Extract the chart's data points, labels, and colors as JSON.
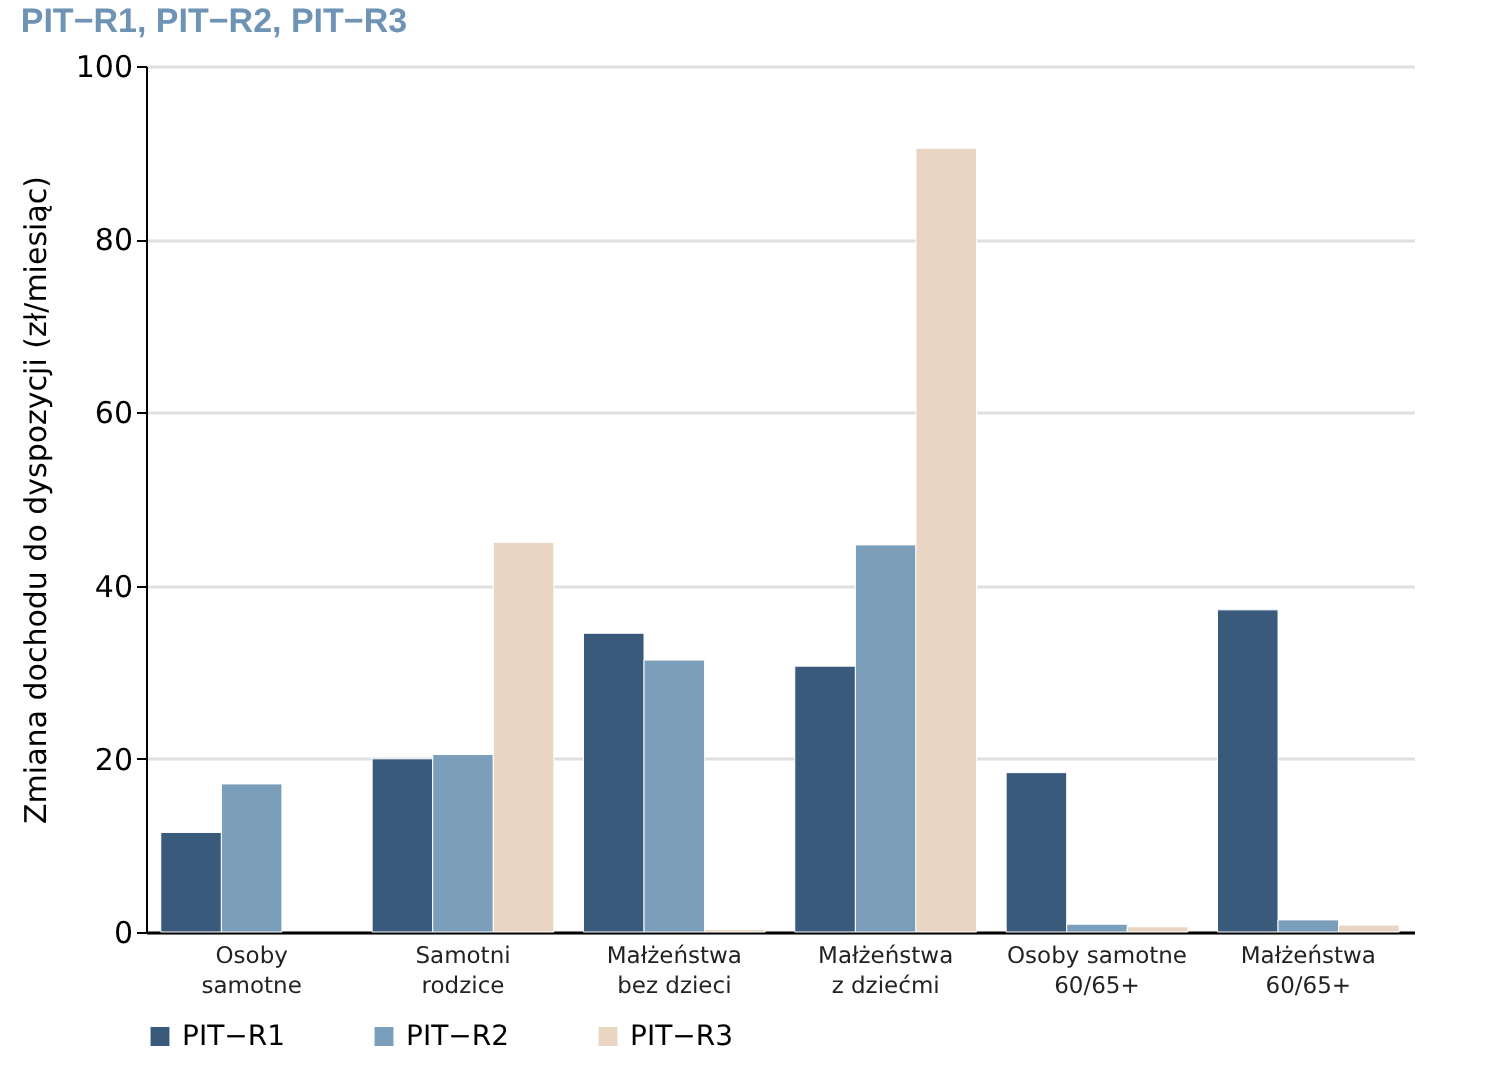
{
  "chart_data": {
    "type": "bar",
    "title": "PIT−R1, PIT−R2, PIT−R3",
    "ylabel": "Zmiana dochodu do dyspozycji (zł/miesiąc)",
    "categories": [
      "Osoby\nsamotne",
      "Samotni\nrodzice",
      "Małżeństwa\nbez dzieci",
      "Małżeństwa\nz dziećmi",
      "Osoby samotne\n60/65+",
      "Małżeństwa\n60/65+"
    ],
    "series": [
      {
        "name": "PIT−R1",
        "color": "#3a5a7c",
        "values": [
          11.5,
          20,
          34.5,
          30.7,
          18.4,
          37.2
        ]
      },
      {
        "name": "PIT−R2",
        "color": "#7b9ebb",
        "values": [
          17.1,
          20.5,
          31.4,
          44.7,
          0.9,
          1.4
        ]
      },
      {
        "name": "PIT−R3",
        "color": "#e8d6c3",
        "values": [
          null,
          45,
          0.3,
          90.5,
          0.6,
          0.8
        ]
      }
    ],
    "ylim": [
      0,
      100
    ],
    "yticks": [
      0,
      20,
      40,
      60,
      80,
      100
    ],
    "grid": "y",
    "legend": "bottom"
  }
}
